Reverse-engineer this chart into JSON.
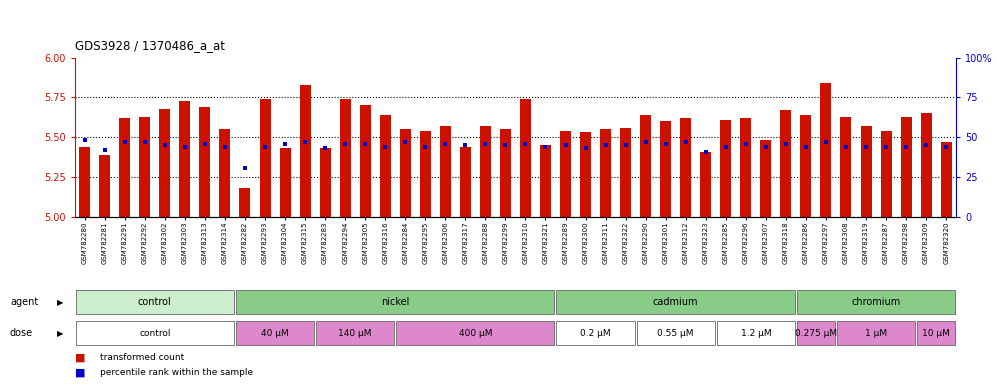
{
  "title": "GDS3928 / 1370486_a_at",
  "samples": [
    "GSM782280",
    "GSM782281",
    "GSM782291",
    "GSM782292",
    "GSM782302",
    "GSM782303",
    "GSM782313",
    "GSM782314",
    "GSM782282",
    "GSM782293",
    "GSM782304",
    "GSM782315",
    "GSM782283",
    "GSM782294",
    "GSM782305",
    "GSM782316",
    "GSM782284",
    "GSM782295",
    "GSM782306",
    "GSM782317",
    "GSM782288",
    "GSM782299",
    "GSM782310",
    "GSM782321",
    "GSM782289",
    "GSM782300",
    "GSM782311",
    "GSM782322",
    "GSM782290",
    "GSM782301",
    "GSM782312",
    "GSM782323",
    "GSM782285",
    "GSM782296",
    "GSM782307",
    "GSM782318",
    "GSM782286",
    "GSM782297",
    "GSM782308",
    "GSM782319",
    "GSM782287",
    "GSM782298",
    "GSM782309",
    "GSM782320"
  ],
  "red_values": [
    5.44,
    5.39,
    5.62,
    5.63,
    5.68,
    5.73,
    5.69,
    5.55,
    5.18,
    5.74,
    5.43,
    5.83,
    5.43,
    5.74,
    5.7,
    5.64,
    5.55,
    5.54,
    5.57,
    5.44,
    5.57,
    5.55,
    5.74,
    5.45,
    5.54,
    5.53,
    5.55,
    5.56,
    5.64,
    5.6,
    5.62,
    5.41,
    5.61,
    5.62,
    5.48,
    5.67,
    5.64,
    5.84,
    5.63,
    5.57,
    5.54,
    5.63,
    5.65,
    5.47
  ],
  "blue_values": [
    48,
    42,
    47,
    47,
    45,
    44,
    46,
    44,
    31,
    44,
    46,
    47,
    43,
    46,
    46,
    44,
    47,
    44,
    46,
    45,
    46,
    45,
    46,
    44,
    45,
    43,
    45,
    45,
    47,
    46,
    47,
    41,
    44,
    46,
    44,
    46,
    44,
    47,
    44,
    44,
    44,
    44,
    45,
    44
  ],
  "ylim_left": [
    5.0,
    6.0
  ],
  "ylim_right": [
    0,
    100
  ],
  "y_ticks_left": [
    5.0,
    5.25,
    5.5,
    5.75,
    6.0
  ],
  "y_ticks_right": [
    0,
    25,
    50,
    75,
    100
  ],
  "bar_color": "#CC1100",
  "dot_color": "#0000CC",
  "plot_bg": "#FFFFFF",
  "fig_bg": "#FFFFFF",
  "agents": [
    {
      "label": "control",
      "start": 0,
      "end": 8,
      "color": "#CCEECC"
    },
    {
      "label": "nickel",
      "start": 8,
      "end": 24,
      "color": "#88CC88"
    },
    {
      "label": "cadmium",
      "start": 24,
      "end": 36,
      "color": "#88CC88"
    },
    {
      "label": "chromium",
      "start": 36,
      "end": 44,
      "color": "#88CC88"
    }
  ],
  "doses": [
    {
      "label": "control",
      "start": 0,
      "end": 8,
      "color": "#FFFFFF"
    },
    {
      "label": "40 μM",
      "start": 8,
      "end": 12,
      "color": "#DD88CC"
    },
    {
      "label": "140 μM",
      "start": 12,
      "end": 16,
      "color": "#DD88CC"
    },
    {
      "label": "400 μM",
      "start": 16,
      "end": 24,
      "color": "#DD88CC"
    },
    {
      "label": "0.2 μM",
      "start": 24,
      "end": 28,
      "color": "#FFFFFF"
    },
    {
      "label": "0.55 μM",
      "start": 28,
      "end": 32,
      "color": "#FFFFFF"
    },
    {
      "label": "1.2 μM",
      "start": 32,
      "end": 36,
      "color": "#FFFFFF"
    },
    {
      "label": "0.275 μM",
      "start": 36,
      "end": 38,
      "color": "#DD88CC"
    },
    {
      "label": "1 μM",
      "start": 38,
      "end": 42,
      "color": "#DD88CC"
    },
    {
      "label": "10 μM",
      "start": 42,
      "end": 44,
      "color": "#DD88CC"
    }
  ],
  "legend_items": [
    {
      "label": "transformed count",
      "color": "#CC1100"
    },
    {
      "label": "percentile rank within the sample",
      "color": "#0000CC"
    }
  ],
  "grid_lines": [
    5.25,
    5.5,
    5.75
  ],
  "n": 44,
  "bar_width": 0.55
}
